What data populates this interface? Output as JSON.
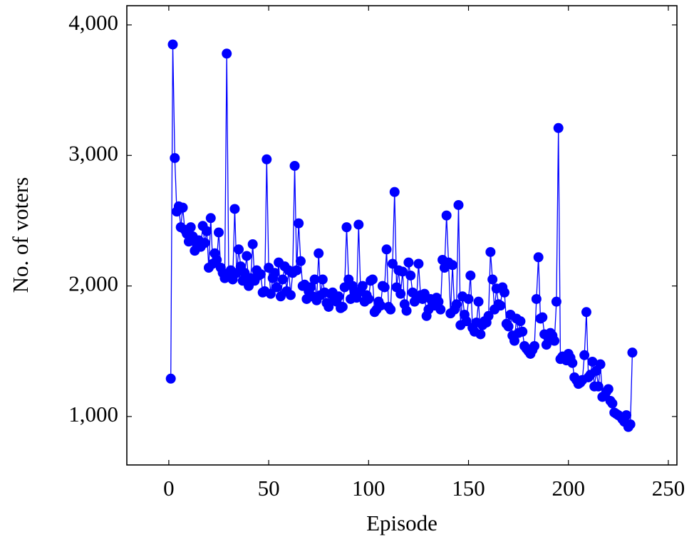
{
  "chart_data": {
    "type": "line",
    "xlabel": "Episode",
    "ylabel": "No. of voters",
    "x": [
      1,
      2,
      3,
      4,
      5,
      6,
      7,
      8,
      9,
      10,
      11,
      12,
      13,
      14,
      15,
      16,
      17,
      18,
      19,
      20,
      21,
      22,
      23,
      24,
      25,
      26,
      27,
      28,
      29,
      30,
      31,
      32,
      33,
      34,
      35,
      36,
      37,
      38,
      39,
      40,
      41,
      42,
      43,
      44,
      45,
      46,
      47,
      48,
      49,
      50,
      51,
      52,
      53,
      54,
      55,
      56,
      57,
      58,
      59,
      60,
      61,
      62,
      63,
      64,
      65,
      66,
      67,
      68,
      69,
      70,
      71,
      72,
      73,
      74,
      75,
      76,
      77,
      78,
      79,
      80,
      81,
      82,
      83,
      84,
      85,
      86,
      87,
      88,
      89,
      90,
      91,
      92,
      93,
      94,
      95,
      96,
      97,
      98,
      99,
      100,
      101,
      102,
      103,
      104,
      105,
      106,
      107,
      108,
      109,
      110,
      111,
      112,
      113,
      114,
      115,
      116,
      117,
      118,
      119,
      120,
      121,
      122,
      123,
      124,
      125,
      126,
      127,
      128,
      129,
      130,
      131,
      132,
      133,
      134,
      135,
      136,
      137,
      138,
      139,
      140,
      141,
      142,
      143,
      144,
      145,
      146,
      147,
      148,
      149,
      150,
      151,
      152,
      153,
      154,
      155,
      156,
      157,
      158,
      159,
      160,
      161,
      162,
      163,
      164,
      165,
      166,
      167,
      168,
      169,
      170,
      171,
      172,
      173,
      174,
      175,
      176,
      177,
      178,
      179,
      180,
      181,
      182,
      183,
      184,
      185,
      186,
      187,
      188,
      189,
      190,
      191,
      192,
      193,
      194,
      195,
      196,
      197,
      198,
      199,
      200,
      201,
      202,
      203,
      204,
      205,
      206,
      207,
      208,
      209,
      210,
      211,
      212,
      213,
      214,
      215,
      216,
      217,
      218,
      219,
      220,
      221,
      222,
      223,
      224,
      225,
      226,
      227,
      228,
      229,
      230,
      231,
      232
    ],
    "series": [
      {
        "name": "voters",
        "color": "#0000ff",
        "values": [
          1290,
          3850,
          2980,
          2570,
          2610,
          2450,
          2600,
          2430,
          2400,
          2340,
          2450,
          2380,
          2270,
          2320,
          2350,
          2300,
          2460,
          2330,
          2420,
          2140,
          2520,
          2170,
          2250,
          2200,
          2410,
          2140,
          2100,
          2060,
          3780,
          2080,
          2120,
          2050,
          2590,
          2100,
          2280,
          2150,
          2040,
          2100,
          2230,
          2000,
          2060,
          2320,
          2040,
          2120,
          2080,
          2090,
          1950,
          1960,
          2970,
          2140,
          1940,
          2060,
          2100,
          1990,
          2180,
          1920,
          2050,
          2150,
          1960,
          2120,
          1930,
          2100,
          2920,
          2120,
          2480,
          2190,
          2000,
          2010,
          1900,
          1960,
          1990,
          1920,
          2050,
          1890,
          2250,
          1930,
          2050,
          1950,
          1870,
          1840,
          1940,
          1950,
          1900,
          1880,
          1920,
          1830,
          1840,
          1990,
          2450,
          2050,
          1900,
          2000,
          1960,
          1910,
          2470,
          1960,
          2000,
          1880,
          1930,
          1900,
          2040,
          2050,
          1800,
          1820,
          1880,
          1850,
          2000,
          1990,
          2280,
          1840,
          1820,
          2170,
          2720,
          1990,
          2120,
          1940,
          2110,
          1860,
          1810,
          2180,
          2080,
          1950,
          1880,
          1900,
          2170,
          1930,
          1900,
          1940,
          1770,
          1820,
          1900,
          1860,
          1850,
          1910,
          1880,
          1820,
          2200,
          2140,
          2540,
          2180,
          1790,
          2160,
          1820,
          1860,
          2620,
          1700,
          1920,
          1780,
          1730,
          1900,
          2080,
          1680,
          1650,
          1720,
          1880,
          1630,
          1700,
          1730,
          1720,
          1770,
          2260,
          2050,
          1820,
          1980,
          1860,
          1850,
          1990,
          1950,
          1710,
          1690,
          1780,
          1620,
          1580,
          1750,
          1640,
          1730,
          1650,
          1540,
          1520,
          1500,
          1480,
          1510,
          1540,
          1900,
          2220,
          1750,
          1760,
          1630,
          1550,
          1600,
          1640,
          1620,
          1580,
          1880,
          3210,
          1440,
          1460,
          1450,
          1430,
          1480,
          1450,
          1410,
          1300,
          1280,
          1250,
          1260,
          1280,
          1470,
          1800,
          1300,
          1320,
          1420,
          1230,
          1350,
          1230,
          1400,
          1150,
          1160,
          1190,
          1210,
          1120,
          1100,
          1030,
          1020,
          1010,
          1000,
          980,
          960,
          1010,
          920,
          940,
          1490
        ]
      }
    ],
    "xlim": [
      -21,
      254.3
    ],
    "xticks": [
      0,
      50,
      100,
      150,
      200,
      250
    ],
    "ylim": [
      629,
      4147
    ],
    "yticks": [
      {
        "value": 1000,
        "label": "1,000"
      },
      {
        "value": 2000,
        "label": "2,000"
      },
      {
        "value": 3000,
        "label": "3,000"
      },
      {
        "value": 4000,
        "label": "4,000"
      }
    ],
    "grid": false
  }
}
